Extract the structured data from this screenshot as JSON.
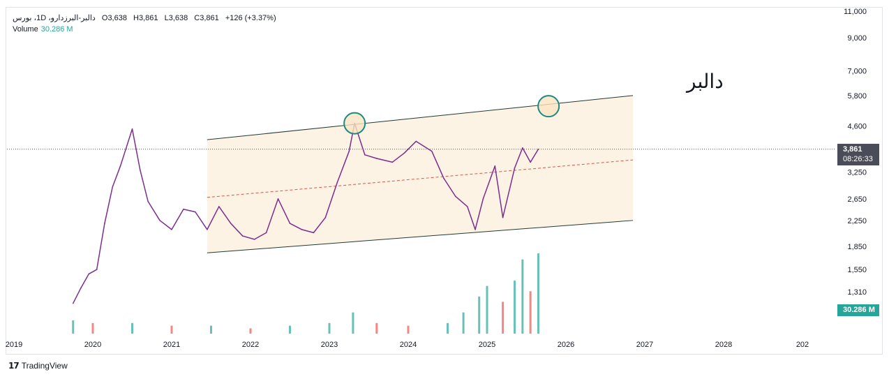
{
  "legend": {
    "symbol": "دالبر-البرزدارو، 1D، بورس",
    "open_label": "O",
    "open": "3,638",
    "high_label": "H",
    "high": "3,861",
    "low_label": "L",
    "low": "3,638",
    "close_label": "C",
    "close": "3,861",
    "change": "+126 (+3.37%)",
    "volume_label": "Volume",
    "volume_value": "30.286 M"
  },
  "price_badge": {
    "price": "3,861",
    "countdown": "08:26:33"
  },
  "volume_badge": "30.286 M",
  "annotation": "دالبر",
  "footer": {
    "brand": "TradingView"
  },
  "colors": {
    "price_line": "#7b2d8e",
    "channel": "#1e3a34",
    "channel_fill": "#fdf3e4",
    "midline": "#e0524a",
    "circle_stroke": "#1b8a82",
    "circle_fill": "#fbe3c0",
    "vol_up": "#26a69a",
    "vol_down": "#ef5350"
  },
  "chart_data": {
    "type": "line",
    "scale": "log",
    "y_ticks": [
      11000,
      9000,
      7000,
      5800,
      4600,
      3250,
      2650,
      2250,
      1850,
      1550,
      1310
    ],
    "y_tick_labels": [
      "11,000",
      "9,000",
      "7,000",
      "5,800",
      "4,600",
      "3,250",
      "2,650",
      "2,250",
      "1,850",
      "1,550",
      "1,310"
    ],
    "x_ticks": [
      "2019",
      "2020",
      "2021",
      "2022",
      "2023",
      "2024",
      "2025",
      "2026",
      "2027",
      "2028",
      "202"
    ],
    "series": [
      {
        "x": [
          2019.75,
          2019.85,
          2019.95,
          2020.05,
          2020.15,
          2020.25,
          2020.35,
          2020.5,
          2020.6,
          2020.7,
          2020.85,
          2021.0,
          2021.15,
          2021.3,
          2021.45,
          2021.6,
          2021.75,
          2021.9,
          2022.05,
          2022.2,
          2022.35,
          2022.5,
          2022.65,
          2022.8,
          2022.95,
          2023.1,
          2023.25,
          2023.32,
          2023.45,
          2023.6,
          2023.8,
          2023.95,
          2024.1,
          2024.3,
          2024.45,
          2024.6,
          2024.75,
          2024.85,
          2024.95,
          2025.1,
          2025.2,
          2025.35,
          2025.45,
          2025.55,
          2025.65
        ],
        "y": [
          1200,
          1350,
          1500,
          1550,
          2200,
          2900,
          3400,
          4500,
          3300,
          2600,
          2250,
          2100,
          2450,
          2400,
          2100,
          2500,
          2200,
          2000,
          1950,
          2050,
          2650,
          2200,
          2100,
          2050,
          2300,
          3000,
          3800,
          4700,
          3700,
          3600,
          3500,
          3750,
          4100,
          3800,
          3100,
          2700,
          2500,
          2100,
          2650,
          3400,
          2300,
          3350,
          3900,
          3500,
          3861
        ]
      }
    ],
    "volume": {
      "x": [
        2019.75,
        2020.0,
        2020.5,
        2021.0,
        2021.5,
        2022.0,
        2022.5,
        2023.0,
        2023.3,
        2023.6,
        2024.0,
        2024.5,
        2024.7,
        2024.9,
        2025.0,
        2025.2,
        2025.35,
        2025.45,
        2025.55,
        2025.65
      ],
      "y": [
        5,
        4,
        4,
        3,
        3,
        2,
        3,
        4,
        8,
        4,
        3,
        4,
        8,
        14,
        18,
        12,
        20,
        28,
        16,
        30.286
      ]
    },
    "channel": {
      "upper": [
        [
          2021.45,
          4150
        ],
        [
          2026.85,
          5800
        ]
      ],
      "lower": [
        [
          2021.45,
          1760
        ],
        [
          2026.85,
          2250
        ]
      ],
      "mid": [
        [
          2021.45,
          2680
        ],
        [
          2026.85,
          3560
        ]
      ]
    },
    "circles": [
      [
        2023.32,
        4700
      ],
      [
        2025.78,
        5350
      ]
    ]
  }
}
